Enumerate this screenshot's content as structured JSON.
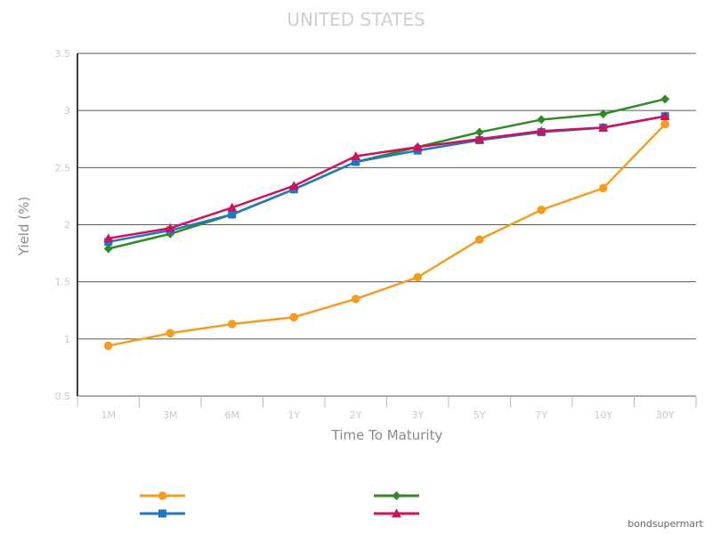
{
  "chart_data": {
    "type": "line",
    "title": "UNITED STATES",
    "xlabel": "Time To Maturity",
    "ylabel": "Yield (%)",
    "categories": [
      "1M",
      "3M",
      "6M",
      "1Y",
      "2Y",
      "3Y",
      "5Y",
      "7Y",
      "10Y",
      "30Y"
    ],
    "ylim": [
      0.5,
      3.5
    ],
    "yticks": [
      "0.5",
      "1",
      "1.5",
      "2",
      "2.5",
      "3",
      "3.5"
    ],
    "grid": "horizontal",
    "legend_position": "bottom",
    "series": [
      {
        "values": [
          0.94,
          1.05,
          1.13,
          1.19,
          1.35,
          1.54,
          1.87,
          2.13,
          2.32,
          2.88
        ],
        "color": "#f39c1f",
        "marker": "circle"
      },
      {
        "values": [
          1.79,
          1.92,
          2.09,
          2.31,
          2.55,
          2.68,
          2.81,
          2.92,
          2.97,
          3.1
        ],
        "color": "#2e8b22",
        "marker": "diamond"
      },
      {
        "values": [
          1.85,
          1.95,
          2.09,
          2.31,
          2.55,
          2.65,
          2.74,
          2.81,
          2.85,
          2.95
        ],
        "color": "#1f78c1",
        "marker": "square"
      },
      {
        "values": [
          1.88,
          1.97,
          2.15,
          2.34,
          2.6,
          2.68,
          2.75,
          2.82,
          2.85,
          2.95
        ],
        "color": "#d0105a",
        "marker": "triangle"
      }
    ]
  },
  "watermark": "bondsupermart"
}
